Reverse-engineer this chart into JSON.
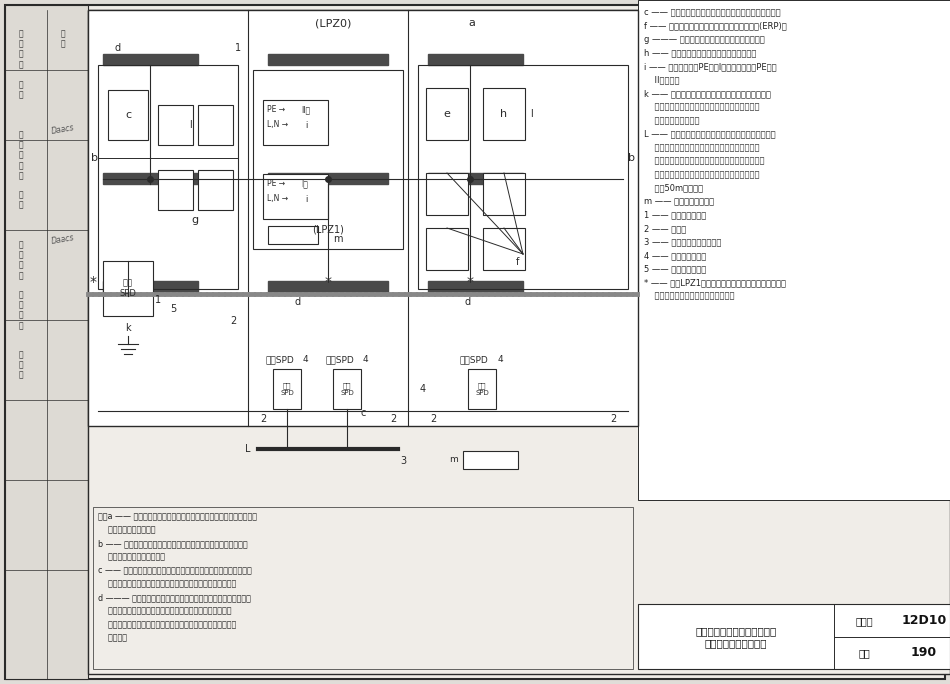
{
  "bg_color": "#e0ddd8",
  "page_bg": "#f0ede8",
  "white": "#ffffff",
  "lc": "#2a2a2a",
  "bc": "#4a4a4a",
  "legend_entries": [
    "c —— 局部信息系统的金属部件，如机体、壳体、机架；",
    "f —— 局部等电位连接带单点连接的接地基准点(ERP)；",
    "g ——— 局部信息系统的网形等电位连接结构；",
    "h —— 局部信息系统的星形等电位连接结构；",
    "i —— 固体安装引入PE线的I级设备和不引入PE线的",
    "    II级设备；",
    "k —— 主要供电线路和电力设备等电位连接用的总接",
    "    地带、总接地母线、总等电位连接带，也可用作",
    "    共用等电位连接带；",
    "L —— 主要供信息线路和信息设备等电位连接用的环形",
    "    等电位连接带、水平等电位连接导体，在特定情",
    "    况下：采用金属板，也可用作共用等电位连接带，",
    "    用接地线多次接到接地系统上侚等电位连接，宜",
    "    每隅50m连一次。",
    "m —— 局部等电位连接带",
    "1 —— 等电位连接导体",
    "2 —— 接地线",
    "3 —— 服务性设施的金属导体",
    "4 —— 信息线路或电缆",
    "5 —— 电力线路或电缆",
    "* —— 进入LPZ1区处，用于管道、电力和通信线路或电",
    "    缆等外来服务性设施的等电位连接。"
  ],
  "notes_lines": [
    "注：a —— 防雷装置的折闪器以及可能是建筑物空间屏蔽的一部分，如",
    "    金属屋顶、屋顶钗笻；",
    "b —— 防雷装置的引下线以及可能是建筑物空间屏蔽的一部分，如",
    "    金属立面、墙和柱内钗笻；",
    "c —— 防雷装置的接地装置（接地体网络、共用接地体网络）以及可",
    "    能是建筑物空间屏蔽的一部分，如基础内钗笻和基础接地体；",
    "d ——— 内部导电体，在建筑物内及其上不包括电气装置的金属装",
    "    置：如电梯轨道、吴车、金属地面、金属门框架、各种服务",
    "    性设施的金属管道，金属电缆梯架，地面、墙、柱和天花板内",
    "    的钗笻；"
  ],
  "title_block": {
    "main_line1": "一幢建筑物接地、等电位连接",
    "main_line2": "和共用接地系统的构成",
    "atlas_label": "图集号",
    "atlas_no": "12D10",
    "page_label": "页次",
    "page_no": "190"
  }
}
